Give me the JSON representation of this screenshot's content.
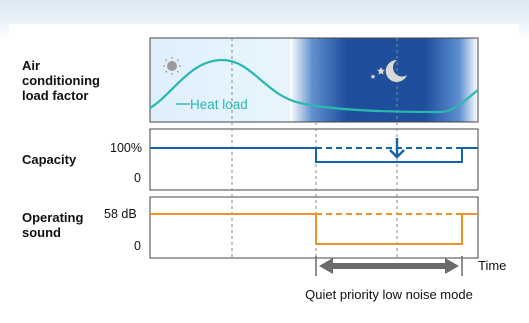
{
  "rows": {
    "load": {
      "label_lines": [
        "Air",
        "conditioning",
        "load factor"
      ],
      "curve_label": "Heat load"
    },
    "capacity": {
      "label": "Capacity",
      "tick_top": "100%",
      "tick_bottom": "0"
    },
    "sound": {
      "label_lines": [
        "Operating",
        "sound"
      ],
      "tick_top": "58 dB",
      "tick_bottom": "0"
    }
  },
  "x_axis_label": "Time",
  "mode_label": "Quiet priority low noise mode",
  "icons": [
    "sun-icon",
    "moon-and-stars-icon",
    "down-arrow-icon"
  ],
  "colors": {
    "heat_load": "#2bb8b0",
    "capacity": "#1464a8",
    "sound": "#f0922a",
    "night_sky": "#1f4f9c",
    "bracket": "#6b6b6b"
  }
}
